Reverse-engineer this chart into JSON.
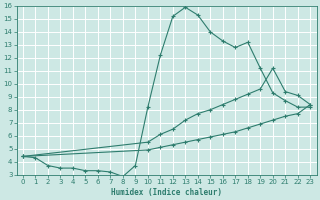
{
  "bg_color": "#cde8e4",
  "grid_color": "#ffffff",
  "line_color": "#2e7d6e",
  "xlabel": "Humidex (Indice chaleur)",
  "xlim": [
    -0.5,
    23.5
  ],
  "ylim": [
    3,
    16
  ],
  "xticks": [
    0,
    1,
    2,
    3,
    4,
    5,
    6,
    7,
    8,
    9,
    10,
    11,
    12,
    13,
    14,
    15,
    16,
    17,
    18,
    19,
    20,
    21,
    22,
    23
  ],
  "yticks": [
    3,
    4,
    5,
    6,
    7,
    8,
    9,
    10,
    11,
    12,
    13,
    14,
    15,
    16
  ],
  "curve1_x": [
    0,
    1,
    2,
    3,
    4,
    5,
    6,
    7,
    8,
    9,
    10,
    11,
    12,
    13,
    14,
    15,
    16,
    17,
    18,
    19,
    20,
    21,
    22,
    23
  ],
  "curve1_y": [
    4.4,
    4.3,
    3.7,
    3.5,
    3.5,
    3.3,
    3.3,
    3.2,
    2.85,
    3.7,
    8.2,
    12.2,
    15.2,
    15.9,
    15.3,
    14.0,
    13.3,
    12.8,
    13.2,
    11.2,
    9.3,
    8.7,
    8.2,
    8.2
  ],
  "curve2_x": [
    0,
    10,
    11,
    12,
    13,
    14,
    15,
    16,
    17,
    18,
    19,
    20,
    21,
    22,
    23
  ],
  "curve2_y": [
    4.4,
    5.5,
    6.1,
    6.5,
    7.2,
    7.7,
    8.0,
    8.4,
    8.8,
    9.2,
    9.6,
    11.2,
    9.4,
    9.1,
    8.4
  ],
  "curve3_x": [
    0,
    10,
    11,
    12,
    13,
    14,
    15,
    16,
    17,
    18,
    19,
    20,
    21,
    22,
    23
  ],
  "curve3_y": [
    4.4,
    4.9,
    5.1,
    5.3,
    5.5,
    5.7,
    5.9,
    6.1,
    6.3,
    6.6,
    6.9,
    7.2,
    7.5,
    7.7,
    8.4
  ]
}
